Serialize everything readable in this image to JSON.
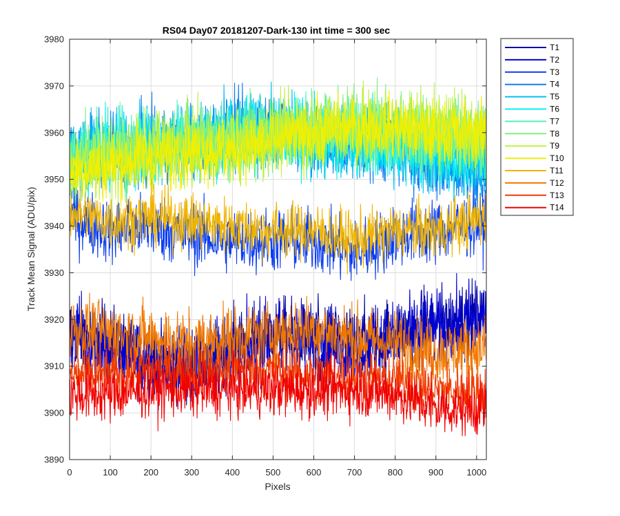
{
  "chart_data": {
    "type": "line",
    "title": "RS04 Day07 20181207-Dark-130 int time = 300 sec",
    "xlabel": "Pixels",
    "ylabel": "Track Mean Signal (ADU/pix)",
    "xlim": [
      0,
      1024
    ],
    "ylim": [
      3890,
      3980
    ],
    "xticks": [
      0,
      100,
      200,
      300,
      400,
      500,
      600,
      700,
      800,
      900,
      1000
    ],
    "yticks": [
      3890,
      3900,
      3910,
      3920,
      3930,
      3940,
      3950,
      3960,
      3970,
      3980
    ],
    "grid": true,
    "legend_position": "outside-top-right",
    "n_points": 1024,
    "series": [
      {
        "name": "T1",
        "color": "#0000a8",
        "baseline_x": [
          0,
          100,
          200,
          300,
          400,
          500,
          600,
          700,
          800,
          900,
          1024
        ],
        "baseline_y": [
          3918,
          3915,
          3911,
          3910,
          3914,
          3917,
          3916,
          3915,
          3917,
          3919,
          3921
        ],
        "noise": 4
      },
      {
        "name": "T2",
        "color": "#0000d0",
        "baseline_x": [
          0,
          100,
          200,
          300,
          400,
          500,
          600,
          700,
          800,
          900,
          1024
        ],
        "baseline_y": [
          3917,
          3914,
          3911,
          3910,
          3913,
          3916,
          3915,
          3914,
          3916,
          3918,
          3920
        ],
        "noise": 4
      },
      {
        "name": "T3",
        "color": "#0a3cf0",
        "baseline_x": [
          0,
          100,
          200,
          300,
          400,
          500,
          600,
          700,
          800,
          900,
          1024
        ],
        "baseline_y": [
          3942,
          3939,
          3940,
          3938,
          3937,
          3937,
          3937,
          3934,
          3938,
          3939,
          3941
        ],
        "noise": 3.5
      },
      {
        "name": "T4",
        "color": "#0f7ff0",
        "baseline_x": [
          0,
          100,
          200,
          300,
          400,
          500,
          600,
          700,
          800,
          900,
          1024
        ],
        "baseline_y": [
          3955,
          3956,
          3957,
          3958,
          3960,
          3961,
          3958,
          3957,
          3957,
          3953,
          3951
        ],
        "noise": 4
      },
      {
        "name": "T5",
        "color": "#00c0f0",
        "baseline_x": [
          0,
          100,
          200,
          300,
          400,
          500,
          600,
          700,
          800,
          900,
          1024
        ],
        "baseline_y": [
          3956,
          3957,
          3958,
          3958,
          3960,
          3961,
          3959,
          3958,
          3958,
          3955,
          3953
        ],
        "noise": 4
      },
      {
        "name": "T6",
        "color": "#00f0f0",
        "baseline_x": [
          0,
          100,
          200,
          300,
          400,
          500,
          600,
          700,
          800,
          900,
          1024
        ],
        "baseline_y": [
          3955,
          3956,
          3957,
          3958,
          3959,
          3960,
          3959,
          3958,
          3958,
          3956,
          3954
        ],
        "noise": 4
      },
      {
        "name": "T7",
        "color": "#50f0c0",
        "baseline_x": [
          0,
          100,
          200,
          300,
          400,
          500,
          600,
          700,
          800,
          900,
          1024
        ],
        "baseline_y": [
          3955,
          3956,
          3957,
          3958,
          3959,
          3960,
          3960,
          3960,
          3959,
          3958,
          3957
        ],
        "noise": 4
      },
      {
        "name": "T8",
        "color": "#80f080",
        "baseline_x": [
          0,
          100,
          200,
          300,
          400,
          500,
          600,
          700,
          800,
          900,
          1024
        ],
        "baseline_y": [
          3954,
          3955,
          3957,
          3958,
          3958,
          3960,
          3961,
          3962,
          3961,
          3960,
          3959
        ],
        "noise": 4
      },
      {
        "name": "T9",
        "color": "#c0f040",
        "baseline_x": [
          0,
          100,
          200,
          300,
          400,
          500,
          600,
          700,
          800,
          900,
          1024
        ],
        "baseline_y": [
          3953,
          3954,
          3956,
          3957,
          3957,
          3959,
          3961,
          3962,
          3962,
          3961,
          3960
        ],
        "noise": 4
      },
      {
        "name": "T10",
        "color": "#f0f000",
        "baseline_x": [
          0,
          100,
          200,
          300,
          400,
          500,
          600,
          700,
          800,
          900,
          1024
        ],
        "baseline_y": [
          3952,
          3953,
          3955,
          3956,
          3956,
          3958,
          3960,
          3961,
          3961,
          3960,
          3960
        ],
        "noise": 3.5
      },
      {
        "name": "T11",
        "color": "#f0b400",
        "baseline_x": [
          0,
          100,
          200,
          300,
          400,
          500,
          600,
          700,
          800,
          900,
          1024
        ],
        "baseline_y": [
          3943,
          3941,
          3942,
          3941,
          3940,
          3939,
          3939,
          3937,
          3939,
          3939,
          3942
        ],
        "noise": 3
      },
      {
        "name": "T12",
        "color": "#f07800",
        "baseline_x": [
          0,
          100,
          200,
          300,
          400,
          500,
          600,
          700,
          800,
          900,
          1024
        ],
        "baseline_y": [
          3918,
          3917,
          3916,
          3915,
          3916,
          3917,
          3918,
          3916,
          3915,
          3913,
          3914
        ],
        "noise": 3.5
      },
      {
        "name": "T13",
        "color": "#f03c00",
        "baseline_x": [
          0,
          100,
          200,
          300,
          400,
          500,
          600,
          700,
          800,
          900,
          1024
        ],
        "baseline_y": [
          3908,
          3908,
          3909,
          3909,
          3909,
          3909,
          3908,
          3908,
          3907,
          3905,
          3904
        ],
        "noise": 3
      },
      {
        "name": "T14",
        "color": "#f00000",
        "baseline_x": [
          0,
          100,
          200,
          300,
          400,
          500,
          600,
          700,
          800,
          900,
          1024
        ],
        "baseline_y": [
          3904,
          3904,
          3905,
          3905,
          3905,
          3905,
          3905,
          3905,
          3904,
          3901,
          3901
        ],
        "noise": 3
      }
    ]
  }
}
